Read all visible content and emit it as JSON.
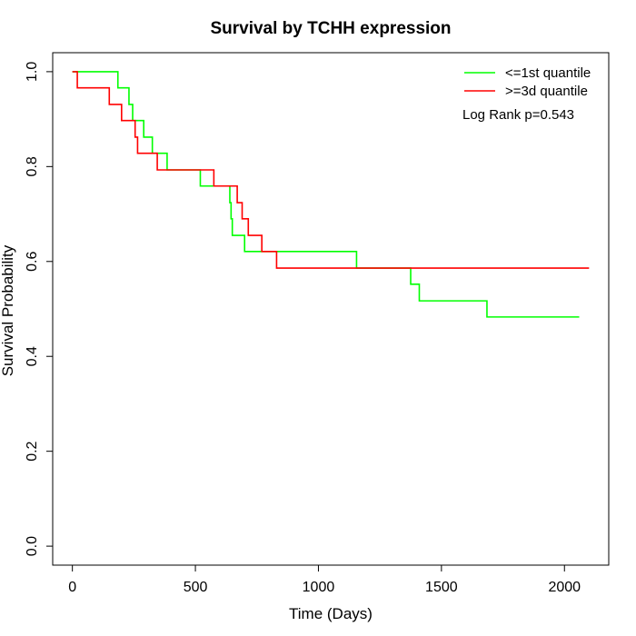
{
  "chart_data": {
    "type": "line",
    "title": "Survival by TCHH expression",
    "xlabel": "Time (Days)",
    "ylabel": "Survival Probability",
    "xlim": [
      -80,
      2180
    ],
    "ylim": [
      -0.04,
      1.04
    ],
    "xticks": [
      0,
      500,
      1000,
      1500,
      2000
    ],
    "yticks": [
      0.0,
      0.2,
      0.4,
      0.6,
      0.8,
      1.0
    ],
    "xtick_labels": [
      "0",
      "500",
      "1000",
      "1500",
      "2000"
    ],
    "ytick_labels": [
      "0.0",
      "0.2",
      "0.4",
      "0.6",
      "0.8",
      "1.0"
    ],
    "grid": false,
    "legend_position": "top-right",
    "annotation": "Log Rank p=0.543",
    "series": [
      {
        "name": "<=1st quantile",
        "color": "#00ff00",
        "step": true,
        "x": [
          0,
          185,
          230,
          245,
          250,
          290,
          325,
          385,
          520,
          640,
          645,
          650,
          700,
          1155,
          1375,
          1410,
          1685,
          2060
        ],
        "y": [
          1.0,
          0.966,
          0.931,
          0.897,
          0.897,
          0.862,
          0.828,
          0.793,
          0.759,
          0.724,
          0.69,
          0.655,
          0.621,
          0.586,
          0.552,
          0.517,
          0.483,
          0.483
        ]
      },
      {
        "name": ">=3d quantile",
        "color": "#ff0000",
        "step": true,
        "x": [
          0,
          20,
          150,
          200,
          255,
          265,
          290,
          305,
          345,
          575,
          670,
          690,
          715,
          770,
          800,
          830,
          2100
        ],
        "y": [
          1.0,
          0.966,
          0.931,
          0.897,
          0.862,
          0.828,
          0.828,
          0.828,
          0.793,
          0.759,
          0.724,
          0.69,
          0.655,
          0.621,
          0.621,
          0.586,
          0.586
        ]
      }
    ]
  }
}
